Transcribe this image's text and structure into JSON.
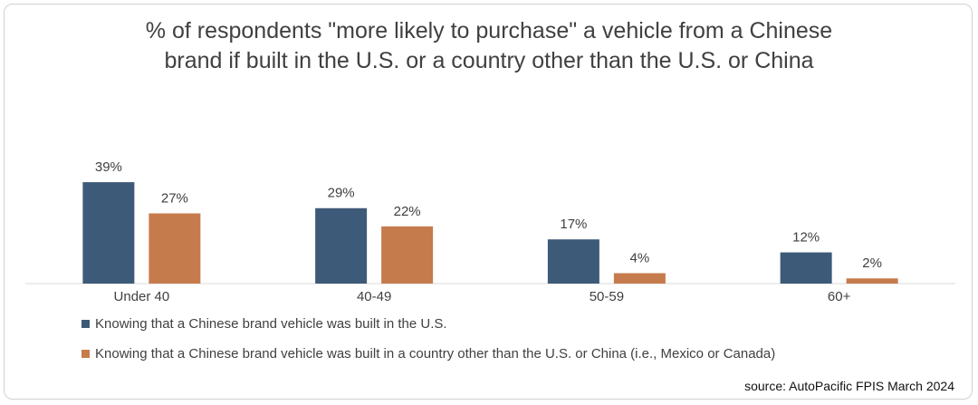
{
  "chart_data": {
    "type": "bar",
    "title": "% of respondents \"more likely to purchase\" a vehicle from a Chinese brand if built in the U.S. or a country other than the U.S. or China",
    "categories": [
      "Under 40",
      "40-49",
      "50-59",
      "60+"
    ],
    "series": [
      {
        "name": "Knowing that a Chinese brand vehicle was built in the U.S.",
        "color": "#3e5a79",
        "values": [
          39,
          29,
          17,
          12
        ],
        "value_labels": [
          "39%",
          "29%",
          "17%",
          "12%"
        ]
      },
      {
        "name": "Knowing that a Chinese brand vehicle was built in a country other than the U.S. or China (i.e., Mexico or Canada)",
        "color": "#c67b4c",
        "values": [
          27,
          22,
          4,
          2
        ],
        "value_labels": [
          "27%",
          "22%",
          "4%",
          "2%"
        ]
      }
    ],
    "legend": "bottom",
    "source": "source: AutoPacific FPIS March 2024"
  }
}
